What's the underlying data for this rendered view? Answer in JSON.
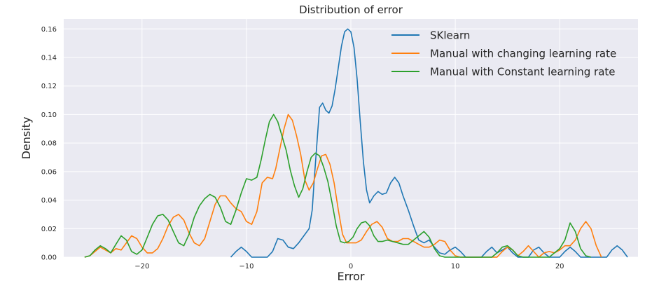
{
  "chart_data": {
    "type": "line",
    "title": "Distribution of error",
    "xlabel": "Error",
    "ylabel": "Density",
    "xlim": [
      -27.5,
      27.5
    ],
    "ylim": [
      0,
      0.167
    ],
    "xticks": [
      -20,
      -10,
      0,
      10,
      20
    ],
    "yticks": [
      0.0,
      0.02,
      0.04,
      0.06,
      0.08,
      0.1,
      0.12,
      0.14,
      0.16
    ],
    "grid": true,
    "legend_position": "top-right",
    "background": "#eaeaf2",
    "series": [
      {
        "name": "SKlearn",
        "color": "#1f77b4",
        "points": [
          [
            -11.5,
            0.0
          ],
          [
            -11.0,
            0.004
          ],
          [
            -10.5,
            0.007
          ],
          [
            -10.0,
            0.004
          ],
          [
            -9.5,
            0.0
          ],
          [
            -8.0,
            0.0
          ],
          [
            -7.5,
            0.004
          ],
          [
            -7.0,
            0.013
          ],
          [
            -6.5,
            0.012
          ],
          [
            -6.0,
            0.007
          ],
          [
            -5.5,
            0.006
          ],
          [
            -5.0,
            0.01
          ],
          [
            -4.5,
            0.015
          ],
          [
            -4.0,
            0.02
          ],
          [
            -3.7,
            0.033
          ],
          [
            -3.5,
            0.055
          ],
          [
            -3.2,
            0.085
          ],
          [
            -3.0,
            0.105
          ],
          [
            -2.7,
            0.108
          ],
          [
            -2.4,
            0.103
          ],
          [
            -2.1,
            0.101
          ],
          [
            -1.8,
            0.106
          ],
          [
            -1.5,
            0.118
          ],
          [
            -1.2,
            0.133
          ],
          [
            -0.9,
            0.148
          ],
          [
            -0.6,
            0.158
          ],
          [
            -0.3,
            0.16
          ],
          [
            0.0,
            0.158
          ],
          [
            0.3,
            0.147
          ],
          [
            0.6,
            0.125
          ],
          [
            0.9,
            0.095
          ],
          [
            1.2,
            0.067
          ],
          [
            1.5,
            0.047
          ],
          [
            1.8,
            0.038
          ],
          [
            2.2,
            0.043
          ],
          [
            2.6,
            0.046
          ],
          [
            3.0,
            0.044
          ],
          [
            3.4,
            0.045
          ],
          [
            3.8,
            0.052
          ],
          [
            4.2,
            0.056
          ],
          [
            4.6,
            0.052
          ],
          [
            5.0,
            0.043
          ],
          [
            5.5,
            0.033
          ],
          [
            6.0,
            0.022
          ],
          [
            6.5,
            0.012
          ],
          [
            7.0,
            0.01
          ],
          [
            7.5,
            0.012
          ],
          [
            8.0,
            0.007
          ],
          [
            8.5,
            0.003
          ],
          [
            9.0,
            0.002
          ],
          [
            9.5,
            0.005
          ],
          [
            10.0,
            0.007
          ],
          [
            10.5,
            0.004
          ],
          [
            11.0,
            0.0
          ],
          [
            12.5,
            0.0
          ],
          [
            13.0,
            0.004
          ],
          [
            13.5,
            0.007
          ],
          [
            14.0,
            0.003
          ],
          [
            14.5,
            0.005
          ],
          [
            15.0,
            0.007
          ],
          [
            15.5,
            0.003
          ],
          [
            16.0,
            0.0
          ],
          [
            17.0,
            0.0
          ],
          [
            17.5,
            0.005
          ],
          [
            18.0,
            0.007
          ],
          [
            18.5,
            0.003
          ],
          [
            19.0,
            0.0
          ],
          [
            20.0,
            0.0
          ],
          [
            20.5,
            0.004
          ],
          [
            21.0,
            0.007
          ],
          [
            21.5,
            0.004
          ],
          [
            22.0,
            0.0
          ],
          [
            24.5,
            0.0
          ],
          [
            25.0,
            0.005
          ],
          [
            25.5,
            0.008
          ],
          [
            26.0,
            0.005
          ],
          [
            26.5,
            0.0
          ]
        ]
      },
      {
        "name": "Manual with changing learning rate",
        "color": "#ff7f0e",
        "points": [
          [
            -25.5,
            0.0
          ],
          [
            -25.0,
            0.001
          ],
          [
            -24.5,
            0.004
          ],
          [
            -24.0,
            0.007
          ],
          [
            -23.5,
            0.005
          ],
          [
            -23.0,
            0.003
          ],
          [
            -22.5,
            0.006
          ],
          [
            -22.0,
            0.005
          ],
          [
            -21.5,
            0.01
          ],
          [
            -21.0,
            0.015
          ],
          [
            -20.5,
            0.013
          ],
          [
            -20.0,
            0.007
          ],
          [
            -19.5,
            0.003
          ],
          [
            -19.0,
            0.003
          ],
          [
            -18.5,
            0.006
          ],
          [
            -18.0,
            0.013
          ],
          [
            -17.5,
            0.022
          ],
          [
            -17.0,
            0.028
          ],
          [
            -16.5,
            0.03
          ],
          [
            -16.0,
            0.026
          ],
          [
            -15.5,
            0.017
          ],
          [
            -15.0,
            0.01
          ],
          [
            -14.5,
            0.008
          ],
          [
            -14.0,
            0.013
          ],
          [
            -13.5,
            0.025
          ],
          [
            -13.0,
            0.037
          ],
          [
            -12.5,
            0.043
          ],
          [
            -12.0,
            0.043
          ],
          [
            -11.5,
            0.038
          ],
          [
            -11.0,
            0.034
          ],
          [
            -10.5,
            0.032
          ],
          [
            -10.0,
            0.025
          ],
          [
            -9.5,
            0.023
          ],
          [
            -9.0,
            0.032
          ],
          [
            -8.5,
            0.052
          ],
          [
            -8.0,
            0.056
          ],
          [
            -7.5,
            0.055
          ],
          [
            -7.2,
            0.062
          ],
          [
            -6.8,
            0.076
          ],
          [
            -6.4,
            0.09
          ],
          [
            -6.0,
            0.1
          ],
          [
            -5.6,
            0.096
          ],
          [
            -5.2,
            0.085
          ],
          [
            -4.8,
            0.072
          ],
          [
            -4.4,
            0.054
          ],
          [
            -4.0,
            0.047
          ],
          [
            -3.6,
            0.052
          ],
          [
            -3.2,
            0.062
          ],
          [
            -2.8,
            0.071
          ],
          [
            -2.4,
            0.072
          ],
          [
            -2.0,
            0.065
          ],
          [
            -1.6,
            0.052
          ],
          [
            -1.2,
            0.033
          ],
          [
            -0.8,
            0.016
          ],
          [
            -0.4,
            0.01
          ],
          [
            0.0,
            0.01
          ],
          [
            0.5,
            0.01
          ],
          [
            1.0,
            0.012
          ],
          [
            1.5,
            0.018
          ],
          [
            2.0,
            0.023
          ],
          [
            2.5,
            0.025
          ],
          [
            3.0,
            0.021
          ],
          [
            3.5,
            0.013
          ],
          [
            4.0,
            0.011
          ],
          [
            4.5,
            0.011
          ],
          [
            5.0,
            0.013
          ],
          [
            5.5,
            0.013
          ],
          [
            6.0,
            0.011
          ],
          [
            6.5,
            0.009
          ],
          [
            7.0,
            0.007
          ],
          [
            7.5,
            0.007
          ],
          [
            8.0,
            0.009
          ],
          [
            8.5,
            0.012
          ],
          [
            9.0,
            0.011
          ],
          [
            9.5,
            0.005
          ],
          [
            10.0,
            0.001
          ],
          [
            10.5,
            0.0
          ],
          [
            14.0,
            0.0
          ],
          [
            14.5,
            0.004
          ],
          [
            15.0,
            0.007
          ],
          [
            15.5,
            0.005
          ],
          [
            16.0,
            0.001
          ],
          [
            16.5,
            0.004
          ],
          [
            17.0,
            0.008
          ],
          [
            17.5,
            0.004
          ],
          [
            18.0,
            0.0
          ],
          [
            18.5,
            0.003
          ],
          [
            19.0,
            0.004
          ],
          [
            19.5,
            0.003
          ],
          [
            20.0,
            0.005
          ],
          [
            20.5,
            0.008
          ],
          [
            21.0,
            0.008
          ],
          [
            21.5,
            0.012
          ],
          [
            22.0,
            0.02
          ],
          [
            22.5,
            0.025
          ],
          [
            23.0,
            0.02
          ],
          [
            23.5,
            0.008
          ],
          [
            24.0,
            0.0
          ]
        ]
      },
      {
        "name": "Manual with Constant learning rate",
        "color": "#2ca02c",
        "points": [
          [
            -25.5,
            0.0
          ],
          [
            -25.0,
            0.001
          ],
          [
            -24.5,
            0.005
          ],
          [
            -24.0,
            0.008
          ],
          [
            -23.5,
            0.006
          ],
          [
            -23.0,
            0.003
          ],
          [
            -22.5,
            0.009
          ],
          [
            -22.0,
            0.015
          ],
          [
            -21.5,
            0.012
          ],
          [
            -21.0,
            0.004
          ],
          [
            -20.5,
            0.002
          ],
          [
            -20.0,
            0.005
          ],
          [
            -19.5,
            0.014
          ],
          [
            -19.0,
            0.023
          ],
          [
            -18.5,
            0.029
          ],
          [
            -18.0,
            0.03
          ],
          [
            -17.5,
            0.026
          ],
          [
            -17.0,
            0.018
          ],
          [
            -16.5,
            0.01
          ],
          [
            -16.0,
            0.008
          ],
          [
            -15.5,
            0.016
          ],
          [
            -15.0,
            0.028
          ],
          [
            -14.5,
            0.036
          ],
          [
            -14.0,
            0.041
          ],
          [
            -13.5,
            0.044
          ],
          [
            -13.0,
            0.042
          ],
          [
            -12.5,
            0.035
          ],
          [
            -12.0,
            0.025
          ],
          [
            -11.5,
            0.023
          ],
          [
            -11.0,
            0.033
          ],
          [
            -10.5,
            0.045
          ],
          [
            -10.0,
            0.055
          ],
          [
            -9.5,
            0.054
          ],
          [
            -9.0,
            0.056
          ],
          [
            -8.6,
            0.068
          ],
          [
            -8.2,
            0.082
          ],
          [
            -7.8,
            0.095
          ],
          [
            -7.4,
            0.1
          ],
          [
            -7.0,
            0.095
          ],
          [
            -6.6,
            0.085
          ],
          [
            -6.2,
            0.075
          ],
          [
            -5.8,
            0.061
          ],
          [
            -5.4,
            0.05
          ],
          [
            -5.0,
            0.042
          ],
          [
            -4.6,
            0.048
          ],
          [
            -4.2,
            0.06
          ],
          [
            -3.8,
            0.07
          ],
          [
            -3.4,
            0.073
          ],
          [
            -3.0,
            0.071
          ],
          [
            -2.6,
            0.063
          ],
          [
            -2.2,
            0.053
          ],
          [
            -1.8,
            0.038
          ],
          [
            -1.4,
            0.022
          ],
          [
            -1.0,
            0.011
          ],
          [
            -0.6,
            0.01
          ],
          [
            -0.2,
            0.011
          ],
          [
            0.2,
            0.014
          ],
          [
            0.6,
            0.02
          ],
          [
            1.0,
            0.024
          ],
          [
            1.4,
            0.025
          ],
          [
            1.8,
            0.022
          ],
          [
            2.2,
            0.015
          ],
          [
            2.6,
            0.011
          ],
          [
            3.0,
            0.011
          ],
          [
            3.5,
            0.012
          ],
          [
            4.0,
            0.011
          ],
          [
            4.5,
            0.01
          ],
          [
            5.0,
            0.009
          ],
          [
            5.5,
            0.009
          ],
          [
            6.0,
            0.012
          ],
          [
            6.5,
            0.015
          ],
          [
            7.0,
            0.018
          ],
          [
            7.5,
            0.014
          ],
          [
            8.0,
            0.006
          ],
          [
            8.5,
            0.001
          ],
          [
            9.0,
            0.0
          ],
          [
            13.5,
            0.0
          ],
          [
            14.0,
            0.003
          ],
          [
            14.5,
            0.007
          ],
          [
            15.0,
            0.008
          ],
          [
            15.5,
            0.005
          ],
          [
            16.0,
            0.001
          ],
          [
            16.5,
            0.0
          ],
          [
            19.0,
            0.0
          ],
          [
            19.5,
            0.003
          ],
          [
            20.0,
            0.006
          ],
          [
            20.5,
            0.012
          ],
          [
            21.0,
            0.024
          ],
          [
            21.5,
            0.018
          ],
          [
            22.0,
            0.006
          ],
          [
            22.5,
            0.001
          ],
          [
            23.0,
            0.0
          ]
        ]
      }
    ]
  }
}
